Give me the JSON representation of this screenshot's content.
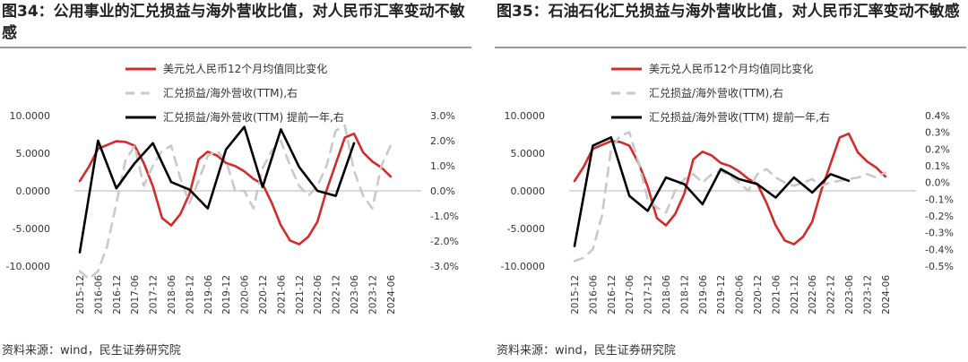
{
  "charts": [
    {
      "title": "图34：公用事业的汇兑损益与海外营收比值，对人民币汇率变动不敏感",
      "source": "资料来源：wind，民生证券研究院",
      "chart_data": {
        "type": "line",
        "x_ticks": [
          "2015-12",
          "2016-06",
          "2016-12",
          "2017-06",
          "2017-12",
          "2018-06",
          "2018-12",
          "2019-06",
          "2019-12",
          "2020-06",
          "2020-12",
          "2021-06",
          "2021-12",
          "2022-06",
          "2022-12",
          "2023-06",
          "2023-12",
          "2024-06"
        ],
        "left_axis": {
          "ylim": [
            -10,
            10
          ],
          "ticks": [
            10,
            5,
            0,
            -5,
            -10
          ],
          "tick_labels": [
            "10.0000",
            "5.0000",
            "0.0000",
            "-5.0000",
            "-10.0000"
          ]
        },
        "right_axis": {
          "ylim": [
            -3,
            3
          ],
          "ticks": [
            3,
            2,
            1,
            0,
            -1,
            -2,
            -3
          ],
          "tick_labels": [
            "3.0%",
            "2.0%",
            "1.0%",
            "0.0%",
            "-1.0%",
            "-2.0%",
            "-3.0%"
          ]
        },
        "series": [
          {
            "name": "美元兑人民币12个月均值同比变化",
            "axis": "left",
            "style": "solid",
            "color": "#d42a2a",
            "x": [
              0,
              0.5,
              1,
              1.5,
              2,
              2.5,
              3,
              3.5,
              4,
              4.5,
              5,
              5.5,
              6,
              6.5,
              7,
              7.5,
              8,
              8.5,
              9,
              9.5,
              10,
              10.5,
              11,
              11.5,
              12,
              12.5,
              13,
              13.5,
              14,
              14.5,
              15,
              15.5,
              16,
              16.5,
              17
            ],
            "y": [
              1.3,
              3.2,
              5.6,
              6.1,
              6.6,
              6.5,
              6.0,
              3.7,
              0.6,
              -3.6,
              -4.6,
              -3.1,
              -0.4,
              4.2,
              5.2,
              4.7,
              3.7,
              3.3,
              2.6,
              1.6,
              0.9,
              -1.6,
              -4.6,
              -6.6,
              -7.1,
              -6.1,
              -4.1,
              0.1,
              3.6,
              7.1,
              7.6,
              5.1,
              3.9,
              3.1,
              1.9
            ]
          },
          {
            "name": "汇兑损益/海外营收(TTM),右",
            "axis": "right",
            "style": "dash",
            "color": "#c9c9c9",
            "x": [
              0,
              0.5,
              1,
              1.5,
              2,
              2.5,
              3,
              3.5,
              4,
              4.5,
              5,
              5.5,
              6,
              6.5,
              7,
              7.5,
              8,
              8.5,
              9,
              9.5,
              10,
              10.5,
              11,
              11.5,
              12,
              12.5,
              13,
              13.5,
              14,
              14.5,
              15,
              15.5,
              16,
              16.5,
              17
            ],
            "y": [
              -3.2,
              -3.5,
              -3.2,
              -2.2,
              -0.5,
              1.2,
              1.8,
              0.2,
              1.0,
              1.6,
              1.8,
              0.5,
              -0.5,
              0.4,
              1.4,
              1.6,
              1.2,
              0.0,
              0.0,
              -0.7,
              0.9,
              1.6,
              2.0,
              1.0,
              0.2,
              -0.2,
              0.2,
              1.0,
              2.4,
              2.6,
              0.8,
              -0.2,
              -0.7,
              1.0,
              1.8
            ]
          },
          {
            "name": "汇兑损益/海外营收(TTM) 提前一年,右",
            "axis": "right",
            "style": "solid",
            "color": "#000000",
            "x": [
              0,
              1,
              2,
              3,
              4,
              5,
              6,
              7,
              8,
              9,
              10,
              11,
              12,
              13,
              14,
              15
            ],
            "y": [
              -2.45,
              2.0,
              0.1,
              1.1,
              1.9,
              0.35,
              0.05,
              -0.7,
              1.65,
              2.55,
              0.15,
              2.45,
              0.95,
              0.0,
              -0.2,
              1.9
            ]
          }
        ]
      }
    },
    {
      "title": "图35：石油石化汇兑损益与海外营收比值，对人民币汇率变动不敏感",
      "source": "资料来源：wind，民生证券研究院",
      "chart_data": {
        "type": "line",
        "x_ticks": [
          "2015-12",
          "2016-06",
          "2016-12",
          "2017-06",
          "2017-12",
          "2018-06",
          "2018-12",
          "2019-06",
          "2019-12",
          "2020-06",
          "2020-12",
          "2021-06",
          "2021-12",
          "2022-06",
          "2022-12",
          "2023-06",
          "2023-12",
          "2024-06"
        ],
        "left_axis": {
          "ylim": [
            -10,
            10
          ],
          "ticks": [
            10,
            5,
            0,
            -5,
            -10
          ],
          "tick_labels": [
            "10.0000",
            "5.0000",
            "0.0000",
            "-5.0000",
            "-10.0000"
          ]
        },
        "right_axis": {
          "ylim": [
            -0.5,
            0.4
          ],
          "ticks": [
            0.4,
            0.3,
            0.2,
            0.1,
            0.0,
            -0.1,
            -0.2,
            -0.3,
            -0.4,
            -0.5
          ],
          "tick_labels": [
            "0.4%",
            "0.3%",
            "0.2%",
            "0.1%",
            "0.0%",
            "-0.1%",
            "-0.2%",
            "-0.3%",
            "-0.4%",
            "-0.5%"
          ]
        },
        "series": [
          {
            "name": "美元兑人民币12个月均值同比变化",
            "axis": "left",
            "style": "solid",
            "color": "#d42a2a",
            "x": [
              0,
              0.5,
              1,
              1.5,
              2,
              2.5,
              3,
              3.5,
              4,
              4.5,
              5,
              5.5,
              6,
              6.5,
              7,
              7.5,
              8,
              8.5,
              9,
              9.5,
              10,
              10.5,
              11,
              11.5,
              12,
              12.5,
              13,
              13.5,
              14,
              14.5,
              15,
              15.5,
              16,
              16.5,
              17
            ],
            "y": [
              1.3,
              3.2,
              5.6,
              6.1,
              6.6,
              6.5,
              6.0,
              3.7,
              0.6,
              -3.6,
              -4.6,
              -3.1,
              -0.4,
              4.2,
              5.2,
              4.7,
              3.7,
              3.3,
              2.6,
              1.6,
              0.9,
              -1.6,
              -4.6,
              -6.6,
              -7.1,
              -6.1,
              -4.1,
              0.1,
              3.6,
              7.1,
              7.6,
              5.1,
              3.9,
              3.1,
              1.9
            ]
          },
          {
            "name": "汇兑损益/海外营收(TTM),右",
            "axis": "right",
            "style": "dash",
            "color": "#c9c9c9",
            "x": [
              0,
              0.5,
              1,
              1.5,
              2,
              2.5,
              3,
              3.5,
              4,
              4.5,
              5,
              5.5,
              6,
              6.5,
              7,
              7.5,
              8,
              8.5,
              9,
              9.5,
              10,
              10.5,
              11,
              11.5,
              12,
              12.5,
              13,
              13.5,
              14,
              14.5,
              15,
              15.5,
              16,
              16.5,
              17
            ],
            "y": [
              -0.47,
              -0.45,
              -0.4,
              -0.2,
              0.2,
              0.28,
              0.3,
              0.12,
              -0.1,
              -0.15,
              -0.18,
              -0.05,
              0.02,
              0.05,
              0.0,
              0.05,
              0.07,
              0.04,
              0.0,
              -0.05,
              0.05,
              0.08,
              0.03,
              0.0,
              -0.02,
              0.0,
              0.02,
              -0.02,
              0.0,
              0.01,
              0.02,
              0.03,
              0.05,
              0.03,
              0.06
            ]
          },
          {
            "name": "汇兑损益/海外营收(TTM) 提前一年,右",
            "axis": "right",
            "style": "solid",
            "color": "#000000",
            "x": [
              0,
              1,
              2,
              3,
              4,
              5,
              6,
              7,
              8,
              9,
              10,
              11,
              12,
              13,
              14,
              15
            ],
            "y": [
              -0.38,
              0.22,
              0.27,
              -0.08,
              -0.17,
              0.03,
              -0.01,
              -0.13,
              0.08,
              0.02,
              -0.01,
              -0.09,
              0.03,
              -0.06,
              0.05,
              0.01
            ]
          }
        ]
      }
    }
  ]
}
